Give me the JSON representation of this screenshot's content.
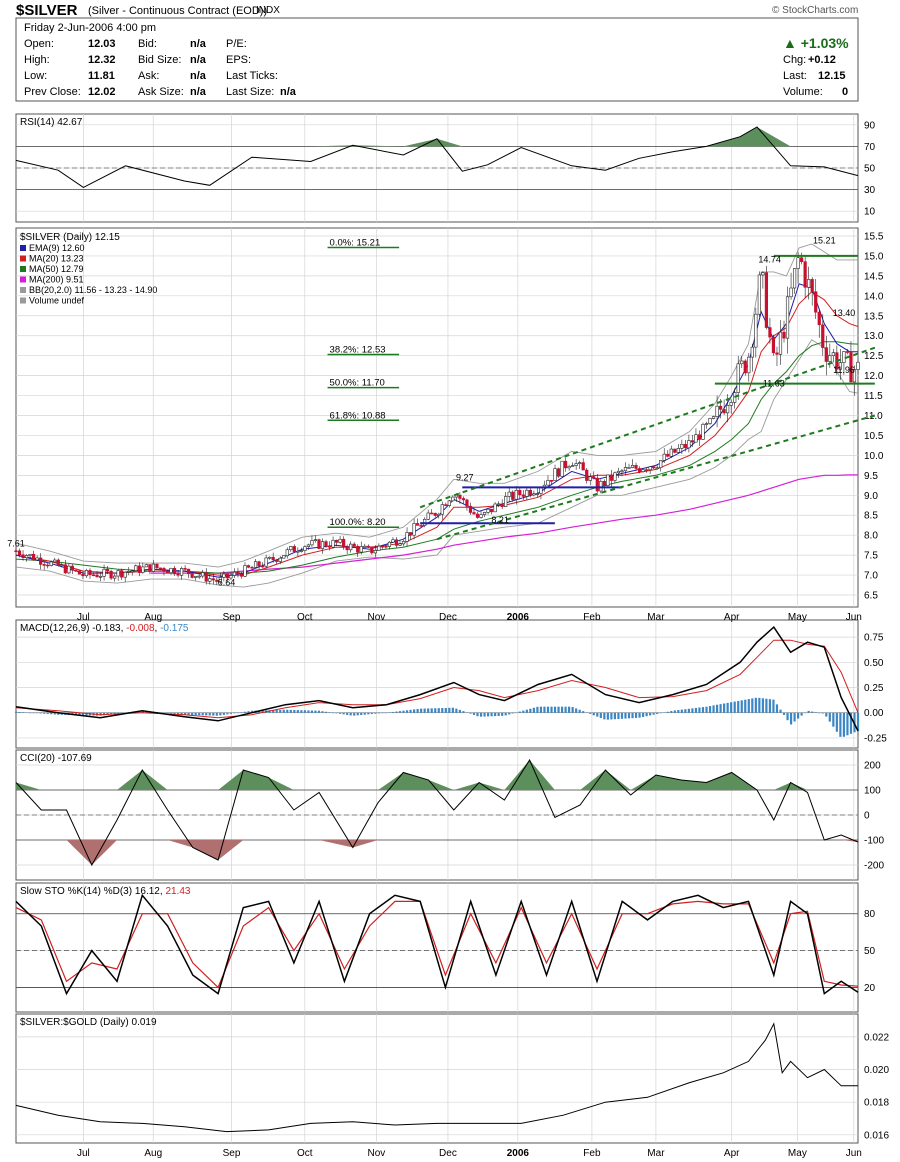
{
  "header": {
    "symbol": "$SILVER",
    "name": "(Silver - Continuous Contract (EOD))",
    "exchange": "INDX",
    "copyright": "© StockCharts.com",
    "date_line": "Friday  2-Jun-2006  4:00 pm",
    "fields": [
      {
        "label": "Open:",
        "value": "12.03"
      },
      {
        "label": "High:",
        "value": "12.32"
      },
      {
        "label": "Low:",
        "value": "11.81"
      },
      {
        "label": "Prev Close:",
        "value": "12.02"
      },
      {
        "label": "Bid:",
        "value": "n/a"
      },
      {
        "label": "Bid Size:",
        "value": "n/a"
      },
      {
        "label": "Ask:",
        "value": "n/a"
      },
      {
        "label": "Ask Size:",
        "value": "n/a"
      },
      {
        "label": "P/E:",
        "value": ""
      },
      {
        "label": "EPS:",
        "value": ""
      },
      {
        "label": "Last Ticks:",
        "value": ""
      },
      {
        "label": "Last Size:",
        "value": "n/a"
      }
    ],
    "pct_change": "+1.03%",
    "chg_label": "Chg:",
    "chg_value": "+0.12",
    "last_label": "Last:",
    "last_value": "12.15",
    "volume_label": "Volume:",
    "volume_value": "0"
  },
  "colors": {
    "up": "#1a6b1a",
    "down": "#c8102e",
    "ema": "#1f1fa8",
    "ma20": "#d02020",
    "ma50": "#1e7a1e",
    "ma200": "#d51fd5",
    "bb": "#9a9a9a",
    "fill_green": "#5d8f5d",
    "fill_red": "#b07070",
    "hist": "#3b86c4",
    "signal_blue": "#3b86c4",
    "grid": "#d4d4d4"
  },
  "x_axis": {
    "months": [
      {
        "label": "Jul",
        "pos": 0.08
      },
      {
        "label": "Aug",
        "pos": 0.163
      },
      {
        "label": "Sep",
        "pos": 0.256
      },
      {
        "label": "Oct",
        "pos": 0.343
      },
      {
        "label": "Nov",
        "pos": 0.428
      },
      {
        "label": "Dec",
        "pos": 0.513
      },
      {
        "label": "2006",
        "pos": 0.596,
        "bold": true
      },
      {
        "label": "Feb",
        "pos": 0.684
      },
      {
        "label": "Mar",
        "pos": 0.76
      },
      {
        "label": "Apr",
        "pos": 0.85
      },
      {
        "label": "May",
        "pos": 0.928
      },
      {
        "label": "Jun",
        "pos": 0.995
      }
    ]
  },
  "chart_data": [
    {
      "type": "line",
      "panel": "rsi",
      "title": "RSI(14) 42.67",
      "yticks": [
        90,
        70,
        50,
        30,
        10
      ],
      "ylim": [
        0,
        100
      ],
      "hlines": [
        70,
        30
      ],
      "midline": 50,
      "x": [
        0,
        0.05,
        0.08,
        0.13,
        0.2,
        0.23,
        0.28,
        0.35,
        0.4,
        0.46,
        0.5,
        0.53,
        0.56,
        0.6,
        0.66,
        0.7,
        0.74,
        0.78,
        0.82,
        0.86,
        0.88,
        0.92,
        0.96,
        1
      ],
      "values": [
        57,
        48,
        32,
        52,
        38,
        34,
        60,
        56,
        71,
        62,
        77,
        47,
        53,
        69,
        52,
        48,
        59,
        65,
        70,
        79,
        88,
        52,
        51,
        43
      ],
      "last": 42.67
    },
    {
      "type": "candlestick",
      "panel": "price",
      "title": "$SILVER (Daily) 12.15",
      "ylim": [
        6.2,
        15.7
      ],
      "yticks": [
        15.5,
        15.0,
        14.5,
        14.0,
        13.5,
        13.0,
        12.5,
        12.0,
        11.5,
        11.0,
        10.5,
        10.0,
        9.5,
        9.0,
        8.5,
        8.0,
        7.5,
        7.0,
        6.5
      ],
      "legend": [
        {
          "label": "EMA(9) 12.60",
          "color": "#1f1fa8"
        },
        {
          "label": "MA(20) 13.23",
          "color": "#d02020"
        },
        {
          "label": "MA(50) 12.79",
          "color": "#1e7a1e"
        },
        {
          "label": "MA(200) 9.51",
          "color": "#d51fd5"
        },
        {
          "label": "BB(20,2.0) 11.56 - 13.23 - 14.90",
          "color": "#9a9a9a"
        },
        {
          "label": "Volume undef",
          "color": "#9a9a9a"
        }
      ],
      "x": [
        0,
        0.04,
        0.08,
        0.12,
        0.16,
        0.2,
        0.24,
        0.27,
        0.3,
        0.34,
        0.38,
        0.42,
        0.46,
        0.5,
        0.52,
        0.55,
        0.58,
        0.62,
        0.66,
        0.69,
        0.72,
        0.76,
        0.8,
        0.83,
        0.85,
        0.87,
        0.885,
        0.9,
        0.915,
        0.93,
        0.945,
        0.96,
        0.975,
        0.99,
        1
      ],
      "close": [
        7.61,
        7.3,
        7.0,
        7.05,
        7.2,
        7.1,
        6.85,
        7.1,
        7.35,
        7.75,
        7.8,
        7.6,
        7.95,
        8.6,
        9.1,
        8.4,
        8.9,
        9.2,
        9.9,
        9.2,
        9.6,
        9.8,
        10.3,
        10.9,
        11.7,
        12.5,
        14.5,
        12.2,
        13.5,
        15.0,
        14.0,
        12.7,
        12.4,
        12.2,
        12.15
      ],
      "ema9": [
        7.5,
        7.3,
        7.05,
        7.05,
        7.15,
        7.1,
        6.95,
        7.05,
        7.3,
        7.65,
        7.75,
        7.65,
        7.9,
        8.45,
        8.9,
        8.6,
        8.8,
        9.05,
        9.6,
        9.4,
        9.55,
        9.75,
        10.2,
        10.8,
        11.5,
        12.3,
        13.6,
        12.9,
        13.3,
        14.3,
        14.2,
        13.3,
        12.8,
        12.6,
        12.6
      ],
      "ma20": [
        7.5,
        7.35,
        7.1,
        7.05,
        7.1,
        7.1,
        7.0,
        7.0,
        7.2,
        7.5,
        7.7,
        7.7,
        7.8,
        8.2,
        8.7,
        8.7,
        8.75,
        8.95,
        9.4,
        9.5,
        9.5,
        9.65,
        10.0,
        10.5,
        11.0,
        11.6,
        12.6,
        13.0,
        13.2,
        13.8,
        14.1,
        13.9,
        13.5,
        13.3,
        13.23
      ],
      "ma50": [
        7.4,
        7.35,
        7.25,
        7.15,
        7.1,
        7.1,
        7.05,
        7.05,
        7.1,
        7.25,
        7.45,
        7.6,
        7.7,
        7.9,
        8.15,
        8.35,
        8.5,
        8.7,
        9.0,
        9.2,
        9.35,
        9.5,
        9.75,
        10.1,
        10.4,
        10.8,
        11.4,
        11.8,
        12.1,
        12.5,
        12.75,
        12.85,
        12.85,
        12.8,
        12.79
      ],
      "ma200": [
        null,
        null,
        null,
        null,
        7.05,
        7.05,
        7.05,
        7.1,
        7.15,
        7.2,
        7.3,
        7.4,
        7.5,
        7.65,
        7.75,
        7.85,
        7.95,
        8.05,
        8.2,
        8.3,
        8.4,
        8.5,
        8.65,
        8.8,
        8.9,
        9.0,
        9.1,
        9.2,
        9.3,
        9.4,
        9.45,
        9.5,
        9.5,
        9.51,
        9.51
      ],
      "bb_upper": [
        7.8,
        7.6,
        7.35,
        7.3,
        7.3,
        7.3,
        7.2,
        7.35,
        7.6,
        7.95,
        8.05,
        7.95,
        8.2,
        8.9,
        9.4,
        9.3,
        9.3,
        9.6,
        10.1,
        10.0,
        10.0,
        10.1,
        10.6,
        11.3,
        12.0,
        12.8,
        14.6,
        14.6,
        14.5,
        15.2,
        15.3,
        15.1,
        14.9,
        14.9,
        14.9
      ],
      "bb_lower": [
        7.2,
        7.1,
        6.85,
        6.8,
        6.9,
        6.9,
        6.75,
        6.7,
        6.8,
        7.05,
        7.35,
        7.45,
        7.4,
        7.5,
        8.0,
        8.1,
        8.2,
        8.3,
        8.7,
        9.0,
        9.0,
        9.2,
        9.4,
        9.7,
        10.0,
        10.4,
        10.6,
        11.4,
        11.9,
        12.4,
        12.9,
        12.7,
        12.1,
        11.6,
        11.56
      ],
      "annotations": [
        {
          "text": "7.61",
          "x": 0.0,
          "y": 7.61
        },
        {
          "text": "6.64",
          "x": 0.25,
          "y": 6.64
        },
        {
          "text": "9.27",
          "x": 0.533,
          "y": 9.27
        },
        {
          "text": "8.21",
          "x": 0.575,
          "y": 8.21
        },
        {
          "text": "14.74",
          "x": 0.895,
          "y": 14.74
        },
        {
          "text": "15.21",
          "x": 0.96,
          "y": 15.21
        },
        {
          "text": "13.40",
          "x": 1.0,
          "y": 13.4
        },
        {
          "text": "11.63",
          "x": 0.9,
          "y": 11.63
        },
        {
          "text": "11.96",
          "x": 0.985,
          "y": 11.96
        }
      ],
      "fibonacci": [
        {
          "label": "0.0%: 15.21",
          "value": 15.21
        },
        {
          "label": "38.2%: 12.53",
          "value": 12.53
        },
        {
          "label": "50.0%: 11.70",
          "value": 11.7
        },
        {
          "label": "61.8%: 10.88",
          "value": 10.88
        },
        {
          "label": "100.0%: 8.20",
          "value": 8.2
        }
      ],
      "horizontal_lines": [
        {
          "value": 15.0,
          "from": 0.9,
          "to": 1.0,
          "color": "#1e7a1e"
        },
        {
          "value": 11.8,
          "from": 0.83,
          "to": 1.02,
          "color": "#1e7a1e"
        },
        {
          "value": 9.2,
          "from": 0.53,
          "to": 0.72,
          "color": "#1f1fa8"
        },
        {
          "value": 8.3,
          "from": 0.48,
          "to": 0.64,
          "color": "#1f1fa8"
        }
      ],
      "trendlines": [
        {
          "x1": 0.48,
          "y1": 8.7,
          "x2": 1.02,
          "y2": 12.7,
          "color": "#1e7a1e"
        },
        {
          "x1": 0.5,
          "y1": 7.9,
          "x2": 1.02,
          "y2": 11.0,
          "color": "#1e7a1e"
        }
      ]
    },
    {
      "type": "line",
      "panel": "macd",
      "title": "MACD(12,26,9)",
      "readout": [
        "-0.183",
        "-0.008",
        "-0.175"
      ],
      "yticks": [
        0.75,
        0.5,
        0.25,
        0.0,
        -0.25
      ],
      "ylim": [
        -0.35,
        0.92
      ],
      "x": [
        0,
        0.05,
        0.1,
        0.15,
        0.2,
        0.24,
        0.28,
        0.32,
        0.36,
        0.4,
        0.44,
        0.48,
        0.52,
        0.55,
        0.58,
        0.62,
        0.66,
        0.7,
        0.74,
        0.78,
        0.82,
        0.86,
        0.88,
        0.9,
        0.92,
        0.94,
        0.96,
        0.98,
        1
      ],
      "macd": [
        0.06,
        0.0,
        -0.05,
        0.02,
        -0.04,
        -0.08,
        0.0,
        0.08,
        0.12,
        0.05,
        0.08,
        0.18,
        0.3,
        0.18,
        0.12,
        0.28,
        0.38,
        0.18,
        0.1,
        0.18,
        0.28,
        0.5,
        0.7,
        0.85,
        0.6,
        0.7,
        0.65,
        0.15,
        -0.18
      ],
      "signal": [
        0.05,
        0.02,
        -0.02,
        0.0,
        -0.02,
        -0.05,
        -0.02,
        0.05,
        0.1,
        0.08,
        0.08,
        0.14,
        0.25,
        0.22,
        0.15,
        0.22,
        0.32,
        0.25,
        0.15,
        0.16,
        0.22,
        0.38,
        0.55,
        0.72,
        0.72,
        0.68,
        0.66,
        0.4,
        0.0
      ]
    },
    {
      "type": "line",
      "panel": "cci",
      "title": "CCI(20) -107.69",
      "yticks": [
        200,
        100,
        0,
        -100,
        -200
      ],
      "ylim": [
        -260,
        260
      ],
      "hlines": [
        100,
        -100
      ],
      "midline": 0,
      "x": [
        0,
        0.03,
        0.06,
        0.09,
        0.12,
        0.15,
        0.18,
        0.21,
        0.24,
        0.27,
        0.3,
        0.33,
        0.36,
        0.4,
        0.43,
        0.46,
        0.49,
        0.52,
        0.55,
        0.58,
        0.61,
        0.64,
        0.67,
        0.7,
        0.73,
        0.76,
        0.79,
        0.82,
        0.85,
        0.88,
        0.9,
        0.92,
        0.94,
        0.96,
        0.98,
        1
      ],
      "values": [
        130,
        20,
        20,
        -200,
        -20,
        180,
        20,
        -130,
        -180,
        180,
        150,
        20,
        90,
        -130,
        50,
        170,
        140,
        20,
        130,
        60,
        220,
        -10,
        40,
        180,
        80,
        160,
        140,
        130,
        170,
        100,
        -20,
        130,
        90,
        -100,
        -80,
        -108
      ],
      "last": -107.69
    },
    {
      "type": "line",
      "panel": "stoch",
      "title": "Slow STO %K(14) %D(3)",
      "readout": [
        "16.12",
        "21.43"
      ],
      "yticks": [
        80,
        50,
        20
      ],
      "ylim": [
        0,
        105
      ],
      "hlines": [
        80,
        20
      ],
      "midline": 50,
      "x": [
        0,
        0.03,
        0.06,
        0.09,
        0.12,
        0.15,
        0.18,
        0.21,
        0.24,
        0.27,
        0.3,
        0.33,
        0.36,
        0.39,
        0.42,
        0.45,
        0.48,
        0.51,
        0.54,
        0.57,
        0.6,
        0.63,
        0.66,
        0.69,
        0.72,
        0.75,
        0.78,
        0.81,
        0.84,
        0.87,
        0.9,
        0.92,
        0.94,
        0.96,
        0.98,
        1
      ],
      "k": [
        90,
        70,
        15,
        50,
        25,
        95,
        70,
        30,
        15,
        85,
        90,
        40,
        90,
        25,
        80,
        95,
        90,
        20,
        90,
        30,
        90,
        30,
        90,
        25,
        90,
        75,
        90,
        95,
        85,
        90,
        30,
        90,
        80,
        15,
        25,
        16
      ],
      "d": [
        85,
        75,
        25,
        40,
        35,
        80,
        80,
        40,
        20,
        70,
        85,
        50,
        80,
        35,
        70,
        90,
        90,
        30,
        80,
        40,
        85,
        40,
        80,
        35,
        80,
        80,
        88,
        90,
        88,
        88,
        40,
        80,
        82,
        25,
        22,
        21
      ]
    },
    {
      "type": "line",
      "panel": "ratio",
      "title": "$SILVER:$GOLD (Daily) 0.019",
      "yticks": [
        0.022,
        0.02,
        0.018,
        0.016
      ],
      "ylim": [
        0.0155,
        0.0234
      ],
      "x": [
        0,
        0.05,
        0.1,
        0.15,
        0.2,
        0.25,
        0.3,
        0.35,
        0.4,
        0.45,
        0.5,
        0.55,
        0.6,
        0.65,
        0.7,
        0.75,
        0.8,
        0.84,
        0.87,
        0.89,
        0.9,
        0.91,
        0.92,
        0.94,
        0.96,
        0.98,
        1
      ],
      "values": [
        0.0178,
        0.0172,
        0.0168,
        0.0167,
        0.0165,
        0.0162,
        0.0163,
        0.0167,
        0.0168,
        0.0166,
        0.0167,
        0.0167,
        0.0167,
        0.0172,
        0.018,
        0.0183,
        0.0192,
        0.0198,
        0.0205,
        0.0218,
        0.0228,
        0.0198,
        0.0205,
        0.0195,
        0.02,
        0.019,
        0.019
      ]
    }
  ]
}
